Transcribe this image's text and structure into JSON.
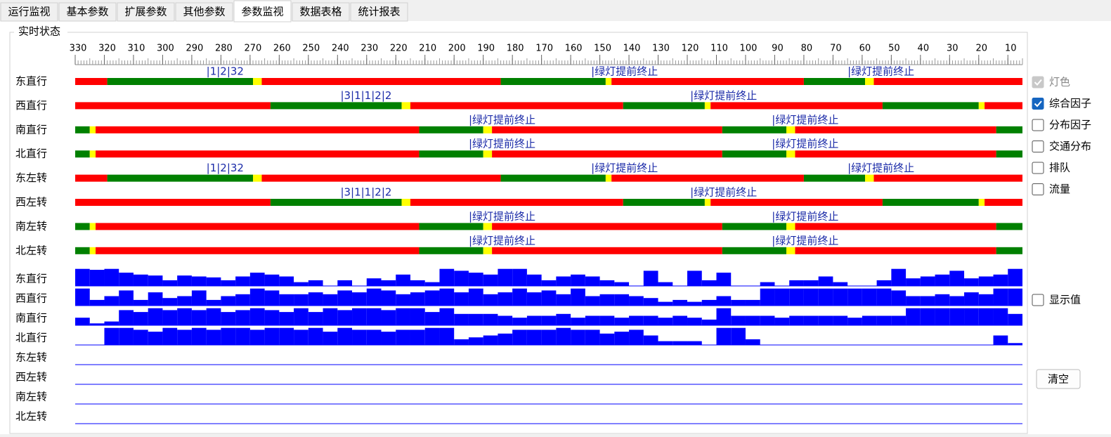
{
  "tabs": [
    "运行监视",
    "基本参数",
    "扩展参数",
    "其他参数",
    "参数监视",
    "数据表格",
    "统计报表"
  ],
  "active_tab": 4,
  "group_title": "实时状态",
  "chart_data": {
    "type": "signal-timeline",
    "xlim": [
      330,
      5
    ],
    "xticks": [
      330,
      320,
      310,
      300,
      290,
      280,
      270,
      260,
      250,
      240,
      230,
      220,
      210,
      200,
      190,
      180,
      170,
      160,
      150,
      140,
      130,
      120,
      110,
      100,
      90,
      80,
      70,
      60,
      50,
      40,
      30,
      20,
      10
    ],
    "minor_tick_step": 1,
    "mid_tick_step": 5,
    "signal_rows": [
      {
        "name": "东直行",
        "segments": [
          {
            "color": "#ff0000",
            "from": 330,
            "to": 319
          },
          {
            "color": "#008000",
            "from": 319,
            "to": 269
          },
          {
            "color": "#ffff00",
            "from": 269,
            "to": 266
          },
          {
            "color": "#ff0000",
            "from": 266,
            "to": 184
          },
          {
            "color": "#008000",
            "from": 184,
            "to": 148
          },
          {
            "color": "#ffff00",
            "from": 148,
            "to": 146
          },
          {
            "color": "#ff0000",
            "from": 146,
            "to": 80
          },
          {
            "color": "#008000",
            "from": 80,
            "to": 59
          },
          {
            "color": "#ffff00",
            "from": 59,
            "to": 56
          },
          {
            "color": "#ff0000",
            "from": 56,
            "to": 5
          }
        ],
        "annotations": [
          {
            "text": "|1|2|32",
            "at": 285
          },
          {
            "text": "|绿灯提前终止",
            "at": 153
          },
          {
            "text": "|绿灯提前终止",
            "at": 65
          }
        ]
      },
      {
        "name": "西直行",
        "segments": [
          {
            "color": "#ff0000",
            "from": 330,
            "to": 263
          },
          {
            "color": "#008000",
            "from": 263,
            "to": 218
          },
          {
            "color": "#ffff00",
            "from": 218,
            "to": 215
          },
          {
            "color": "#ff0000",
            "from": 215,
            "to": 142
          },
          {
            "color": "#008000",
            "from": 142,
            "to": 114
          },
          {
            "color": "#ffff00",
            "from": 114,
            "to": 112
          },
          {
            "color": "#ff0000",
            "from": 112,
            "to": 53
          },
          {
            "color": "#008000",
            "from": 53,
            "to": 20
          },
          {
            "color": "#ffff00",
            "from": 20,
            "to": 18
          },
          {
            "color": "#ff0000",
            "from": 18,
            "to": 5
          }
        ],
        "annotations": [
          {
            "text": "|3|1|1|2|2",
            "at": 239
          },
          {
            "text": "|绿灯提前终止",
            "at": 119
          }
        ]
      },
      {
        "name": "南直行",
        "segments": [
          {
            "color": "#008000",
            "from": 330,
            "to": 325
          },
          {
            "color": "#ffff00",
            "from": 325,
            "to": 323
          },
          {
            "color": "#ff0000",
            "from": 323,
            "to": 212
          },
          {
            "color": "#008000",
            "from": 212,
            "to": 190
          },
          {
            "color": "#ffff00",
            "from": 190,
            "to": 187
          },
          {
            "color": "#ff0000",
            "from": 187,
            "to": 108
          },
          {
            "color": "#008000",
            "from": 108,
            "to": 86
          },
          {
            "color": "#ffff00",
            "from": 86,
            "to": 83
          },
          {
            "color": "#ff0000",
            "from": 83,
            "to": 14
          },
          {
            "color": "#008000",
            "from": 14,
            "to": 5
          }
        ],
        "annotations": [
          {
            "text": "|绿灯提前终止",
            "at": 195
          },
          {
            "text": "|绿灯提前终止",
            "at": 91
          }
        ]
      },
      {
        "name": "北直行",
        "segments": [
          {
            "color": "#008000",
            "from": 330,
            "to": 325
          },
          {
            "color": "#ffff00",
            "from": 325,
            "to": 323
          },
          {
            "color": "#ff0000",
            "from": 323,
            "to": 212
          },
          {
            "color": "#008000",
            "from": 212,
            "to": 190
          },
          {
            "color": "#ffff00",
            "from": 190,
            "to": 187
          },
          {
            "color": "#ff0000",
            "from": 187,
            "to": 108
          },
          {
            "color": "#008000",
            "from": 108,
            "to": 86
          },
          {
            "color": "#ffff00",
            "from": 86,
            "to": 83
          },
          {
            "color": "#ff0000",
            "from": 83,
            "to": 14
          },
          {
            "color": "#008000",
            "from": 14,
            "to": 5
          }
        ],
        "annotations": [
          {
            "text": "|绿灯提前终止",
            "at": 195
          },
          {
            "text": "|绿灯提前终止",
            "at": 91
          }
        ]
      },
      {
        "name": "东左转",
        "segments": [
          {
            "color": "#ff0000",
            "from": 330,
            "to": 319
          },
          {
            "color": "#008000",
            "from": 319,
            "to": 269
          },
          {
            "color": "#ffff00",
            "from": 269,
            "to": 266
          },
          {
            "color": "#ff0000",
            "from": 266,
            "to": 184
          },
          {
            "color": "#008000",
            "from": 184,
            "to": 148
          },
          {
            "color": "#ffff00",
            "from": 148,
            "to": 146
          },
          {
            "color": "#ff0000",
            "from": 146,
            "to": 80
          },
          {
            "color": "#008000",
            "from": 80,
            "to": 59
          },
          {
            "color": "#ffff00",
            "from": 59,
            "to": 56
          },
          {
            "color": "#ff0000",
            "from": 56,
            "to": 5
          }
        ],
        "annotations": [
          {
            "text": "|1|2|32",
            "at": 285
          },
          {
            "text": "|绿灯提前终止",
            "at": 153
          },
          {
            "text": "|绿灯提前终止",
            "at": 65
          }
        ]
      },
      {
        "name": "西左转",
        "segments": [
          {
            "color": "#ff0000",
            "from": 330,
            "to": 263
          },
          {
            "color": "#008000",
            "from": 263,
            "to": 218
          },
          {
            "color": "#ffff00",
            "from": 218,
            "to": 215
          },
          {
            "color": "#ff0000",
            "from": 215,
            "to": 142
          },
          {
            "color": "#008000",
            "from": 142,
            "to": 114
          },
          {
            "color": "#ffff00",
            "from": 114,
            "to": 112
          },
          {
            "color": "#ff0000",
            "from": 112,
            "to": 53
          },
          {
            "color": "#008000",
            "from": 53,
            "to": 20
          },
          {
            "color": "#ffff00",
            "from": 20,
            "to": 18
          },
          {
            "color": "#ff0000",
            "from": 18,
            "to": 5
          }
        ],
        "annotations": [
          {
            "text": "|3|1|1|2|2",
            "at": 239
          },
          {
            "text": "|绿灯提前终止",
            "at": 119
          }
        ]
      },
      {
        "name": "南左转",
        "segments": [
          {
            "color": "#008000",
            "from": 330,
            "to": 325
          },
          {
            "color": "#ffff00",
            "from": 325,
            "to": 323
          },
          {
            "color": "#ff0000",
            "from": 323,
            "to": 212
          },
          {
            "color": "#008000",
            "from": 212,
            "to": 190
          },
          {
            "color": "#ffff00",
            "from": 190,
            "to": 187
          },
          {
            "color": "#ff0000",
            "from": 187,
            "to": 108
          },
          {
            "color": "#008000",
            "from": 108,
            "to": 86
          },
          {
            "color": "#ffff00",
            "from": 86,
            "to": 83
          },
          {
            "color": "#ff0000",
            "from": 83,
            "to": 14
          },
          {
            "color": "#008000",
            "from": 14,
            "to": 5
          }
        ],
        "annotations": [
          {
            "text": "|绿灯提前终止",
            "at": 195
          },
          {
            "text": "|绿灯提前终止",
            "at": 91
          }
        ]
      },
      {
        "name": "北左转",
        "segments": [
          {
            "color": "#008000",
            "from": 330,
            "to": 325
          },
          {
            "color": "#ffff00",
            "from": 325,
            "to": 323
          },
          {
            "color": "#ff0000",
            "from": 323,
            "to": 212
          },
          {
            "color": "#008000",
            "from": 212,
            "to": 190
          },
          {
            "color": "#ffff00",
            "from": 190,
            "to": 187
          },
          {
            "color": "#ff0000",
            "from": 187,
            "to": 108
          },
          {
            "color": "#008000",
            "from": 108,
            "to": 86
          },
          {
            "color": "#ffff00",
            "from": 86,
            "to": 83
          },
          {
            "color": "#ff0000",
            "from": 83,
            "to": 14
          },
          {
            "color": "#008000",
            "from": 14,
            "to": 5
          }
        ],
        "annotations": [
          {
            "text": "|绿灯提前终止",
            "at": 195
          },
          {
            "text": "|绿灯提前终止",
            "at": 91
          }
        ]
      }
    ],
    "factor_x": [
      330,
      325,
      320,
      315,
      310,
      305,
      300,
      295,
      290,
      285,
      280,
      275,
      270,
      265,
      260,
      255,
      250,
      245,
      240,
      235,
      230,
      225,
      220,
      215,
      210,
      205,
      200,
      195,
      190,
      185,
      180,
      175,
      170,
      165,
      160,
      155,
      150,
      145,
      140,
      135,
      130,
      125,
      120,
      115,
      110,
      105,
      100,
      95,
      90,
      85,
      80,
      75,
      70,
      65,
      60,
      55,
      50,
      45,
      40,
      35,
      30,
      25,
      20,
      15,
      10
    ],
    "factor_ylim": [
      0,
      1
    ],
    "factor_color": "#0000ff",
    "factor_rows": [
      {
        "name": "东直行",
        "values": [
          0.9,
          0.85,
          0.9,
          0.7,
          0.6,
          0.55,
          0.3,
          0.55,
          0.5,
          0.45,
          0.3,
          0.5,
          0.7,
          0.6,
          0.5,
          0.2,
          0.3,
          0,
          0.3,
          0,
          0.4,
          0.3,
          0.6,
          0.3,
          0.2,
          0.9,
          0.8,
          0.7,
          0.6,
          0.9,
          0.9,
          0.6,
          0.3,
          0.5,
          0.6,
          0.5,
          0.3,
          0.2,
          0,
          0.8,
          0.2,
          0,
          0.8,
          0.3,
          0.7,
          0,
          0,
          0.2,
          0,
          0.3,
          0.3,
          0.5,
          0.2,
          0,
          0,
          0.3,
          0.9,
          0.4,
          0.5,
          0.6,
          0.8,
          0.4,
          0.5,
          0.6,
          0.9
        ]
      },
      {
        "name": "西直行",
        "values": [
          0.9,
          0.3,
          0.5,
          0.8,
          0.3,
          0.7,
          0.4,
          0.5,
          0.8,
          0.3,
          0.5,
          0.6,
          0.9,
          0.8,
          0.6,
          0.6,
          0.7,
          0.6,
          0.8,
          0.7,
          0.9,
          0.8,
          0.6,
          0.7,
          0.8,
          0.9,
          0.7,
          0.9,
          0.6,
          0.7,
          0.9,
          0.7,
          0.8,
          0.6,
          0.9,
          0.5,
          0.6,
          0.6,
          0.5,
          0.4,
          0.2,
          0.3,
          0.2,
          0.3,
          0.5,
          0.3,
          0.3,
          0.9,
          0.9,
          0.9,
          0.9,
          0.9,
          0.9,
          0.9,
          0.9,
          0.9,
          0.8,
          0.5,
          0.5,
          0.6,
          0.5,
          0.7,
          0.6,
          0.9,
          0.9
        ]
      },
      {
        "name": "南直行",
        "values": [
          0.4,
          0.1,
          0.2,
          0.8,
          0.7,
          0.9,
          0.8,
          0.9,
          0.8,
          0.9,
          0.7,
          0.8,
          0.9,
          0.8,
          0.7,
          0.9,
          0.7,
          0.9,
          0.8,
          0.9,
          0.9,
          0.8,
          0.9,
          0.9,
          0.7,
          0.9,
          0.6,
          0.6,
          0.6,
          0.5,
          0.4,
          0.5,
          0.5,
          0.6,
          0.4,
          0.5,
          0.5,
          0.4,
          0.5,
          0.5,
          0.4,
          0.5,
          0.4,
          0.3,
          0.9,
          0.5,
          0.5,
          0.5,
          0.4,
          0.5,
          0.5,
          0.5,
          0.5,
          0.4,
          0.5,
          0.5,
          0.5,
          0.9,
          0.9,
          0.9,
          0.9,
          0.9,
          0.9,
          0.9,
          0.6
        ]
      },
      {
        "name": "北直行",
        "values": [
          0,
          0,
          0.9,
          0.9,
          0.8,
          0.7,
          0.9,
          0.8,
          0.9,
          0.8,
          0.9,
          0.9,
          0.8,
          0.9,
          0.9,
          0.8,
          0.9,
          0.7,
          0.9,
          0.8,
          0.8,
          0.7,
          0.8,
          0.8,
          0.9,
          0.9,
          0.3,
          0.4,
          0.5,
          0.6,
          0.8,
          0.8,
          0.8,
          0.9,
          0.8,
          0.8,
          0.6,
          0.7,
          0.8,
          0.5,
          0.2,
          0.2,
          0.2,
          0,
          0.9,
          0.9,
          0.3,
          0,
          0,
          0,
          0,
          0,
          0,
          0,
          0,
          0,
          0,
          0,
          0,
          0,
          0,
          0,
          0,
          0.5,
          0.1
        ]
      },
      {
        "name": "东左转",
        "values": []
      },
      {
        "name": "西左转",
        "values": []
      },
      {
        "name": "南左转",
        "values": []
      },
      {
        "name": "北左转",
        "values": []
      }
    ]
  },
  "options": [
    {
      "label": "灯色",
      "checked": true,
      "disabled": true
    },
    {
      "label": "综合因子",
      "checked": true,
      "disabled": false
    },
    {
      "label": "分布因子",
      "checked": false,
      "disabled": false
    },
    {
      "label": "交通分布",
      "checked": false,
      "disabled": false
    },
    {
      "label": "排队",
      "checked": false,
      "disabled": false
    },
    {
      "label": "流量",
      "checked": false,
      "disabled": false
    }
  ],
  "show_values": {
    "label": "显示值",
    "checked": false
  },
  "clear_button": "清空"
}
